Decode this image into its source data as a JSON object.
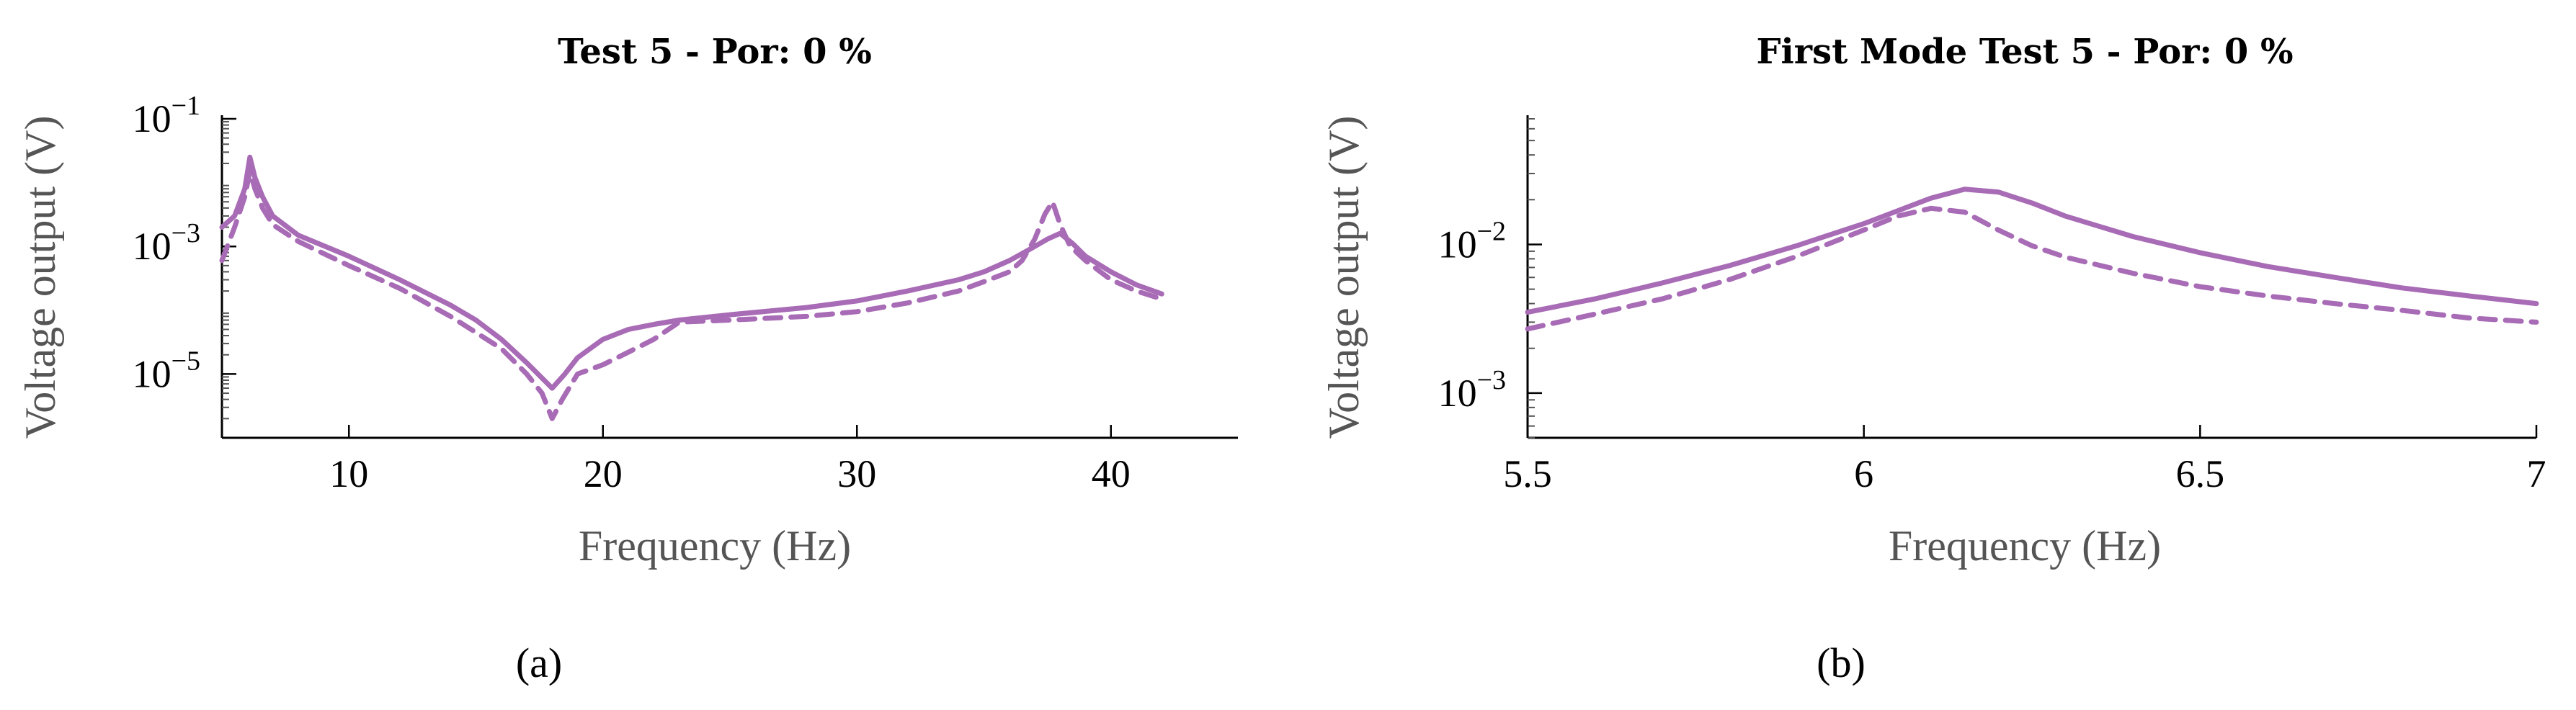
{
  "colors": {
    "series": "#A86BB5",
    "axis": "#000000"
  },
  "chart_data": [
    {
      "panel_label": "(a)",
      "type": "line",
      "title": "Test 5 - Por: 0 %",
      "xlabel": "Frequency (Hz)",
      "ylabel": "Voltage output (V)",
      "xlim": [
        5,
        45
      ],
      "ylim": [
        1e-06,
        0.1
      ],
      "yscale": "log",
      "xticks": [
        10,
        20,
        30,
        40
      ],
      "yticks": [
        {
          "value": 1e-05,
          "mantissa": "10",
          "exp": "−5"
        },
        {
          "value": 0.001,
          "mantissa": "10",
          "exp": "−3"
        },
        {
          "value": 0.1,
          "mantissa": "10",
          "exp": "−1"
        }
      ],
      "grid": false,
      "series": [
        {
          "style": "solid",
          "x": [
            5,
            5.5,
            5.9,
            6.1,
            6.3,
            6.6,
            7,
            8,
            10,
            12,
            14,
            15,
            16,
            17,
            18,
            18.5,
            19,
            20,
            21,
            22,
            23,
            25,
            28,
            30,
            32,
            34,
            35,
            36,
            36.8,
            37.5,
            38,
            38.5,
            39,
            40,
            41,
            42
          ],
          "y": [
            0.002,
            0.003,
            0.008,
            0.025,
            0.012,
            0.006,
            0.003,
            0.0015,
            0.0007,
            0.0003,
            0.00012,
            7e-05,
            3.5e-05,
            1.5e-05,
            6e-06,
            1e-05,
            1.8e-05,
            3.5e-05,
            5e-05,
            6e-05,
            7e-05,
            8.5e-05,
            0.00011,
            0.00014,
            0.0002,
            0.0003,
            0.0004,
            0.0006,
            0.0009,
            0.0013,
            0.0016,
            0.0011,
            0.0007,
            0.0004,
            0.00025,
            0.00018
          ]
        },
        {
          "style": "dashed",
          "x": [
            5,
            5.5,
            5.9,
            6.1,
            6.3,
            6.6,
            7,
            8,
            10,
            12,
            14,
            16,
            17,
            17.6,
            18,
            18.4,
            19,
            20,
            21,
            22,
            23,
            25,
            28,
            30,
            32,
            34,
            35,
            36,
            36.5,
            37,
            37.4,
            37.7,
            38,
            38.4,
            39,
            40,
            41,
            42
          ],
          "y": [
            0.0006,
            0.002,
            0.006,
            0.015,
            0.008,
            0.004,
            0.0022,
            0.0012,
            0.0005,
            0.00022,
            8e-05,
            2.5e-05,
            1e-05,
            5e-06,
            2e-06,
            4e-06,
            1e-05,
            1.4e-05,
            2.2e-05,
            3.5e-05,
            6.5e-05,
            7e-05,
            8e-05,
            9.5e-05,
            0.00013,
            0.0002,
            0.00028,
            0.0004,
            0.0006,
            0.0013,
            0.0032,
            0.005,
            0.0022,
            0.001,
            0.0006,
            0.0003,
            0.0002,
            0.00015
          ]
        }
      ]
    },
    {
      "panel_label": "(b)",
      "type": "line",
      "title": "First Mode Test 5 - Por: 0 %",
      "xlabel": "Frequency (Hz)",
      "ylabel": "Voltage output (V)",
      "xlim": [
        5.5,
        7
      ],
      "ylim": [
        0.0005,
        0.07
      ],
      "yscale": "log",
      "xticks": [
        5.5,
        6,
        6.5,
        7
      ],
      "xtick_labels": [
        "5.5",
        "6",
        "6.5",
        "7"
      ],
      "yticks": [
        {
          "value": 0.001,
          "mantissa": "10",
          "exp": "−3"
        },
        {
          "value": 0.01,
          "mantissa": "10",
          "exp": "−2"
        }
      ],
      "grid": false,
      "series": [
        {
          "style": "solid",
          "x": [
            5.5,
            5.6,
            5.7,
            5.8,
            5.9,
            6.0,
            6.05,
            6.1,
            6.15,
            6.2,
            6.25,
            6.3,
            6.4,
            6.5,
            6.6,
            6.7,
            6.8,
            6.9,
            7.0
          ],
          "y": [
            0.0035,
            0.0043,
            0.0055,
            0.0072,
            0.0098,
            0.0138,
            0.0168,
            0.0205,
            0.0235,
            0.0225,
            0.019,
            0.0155,
            0.0113,
            0.0088,
            0.0071,
            0.006,
            0.0051,
            0.0045,
            0.004
          ]
        },
        {
          "style": "dashed",
          "x": [
            5.5,
            5.6,
            5.7,
            5.8,
            5.9,
            6.0,
            6.05,
            6.1,
            6.15,
            6.2,
            6.25,
            6.3,
            6.4,
            6.5,
            6.6,
            6.7,
            6.8,
            6.9,
            7.0
          ],
          "y": [
            0.0027,
            0.0034,
            0.0043,
            0.0058,
            0.0083,
            0.0125,
            0.0155,
            0.0175,
            0.0165,
            0.0125,
            0.0098,
            0.0082,
            0.0064,
            0.0052,
            0.0045,
            0.004,
            0.0036,
            0.0032,
            0.003
          ]
        }
      ]
    }
  ]
}
